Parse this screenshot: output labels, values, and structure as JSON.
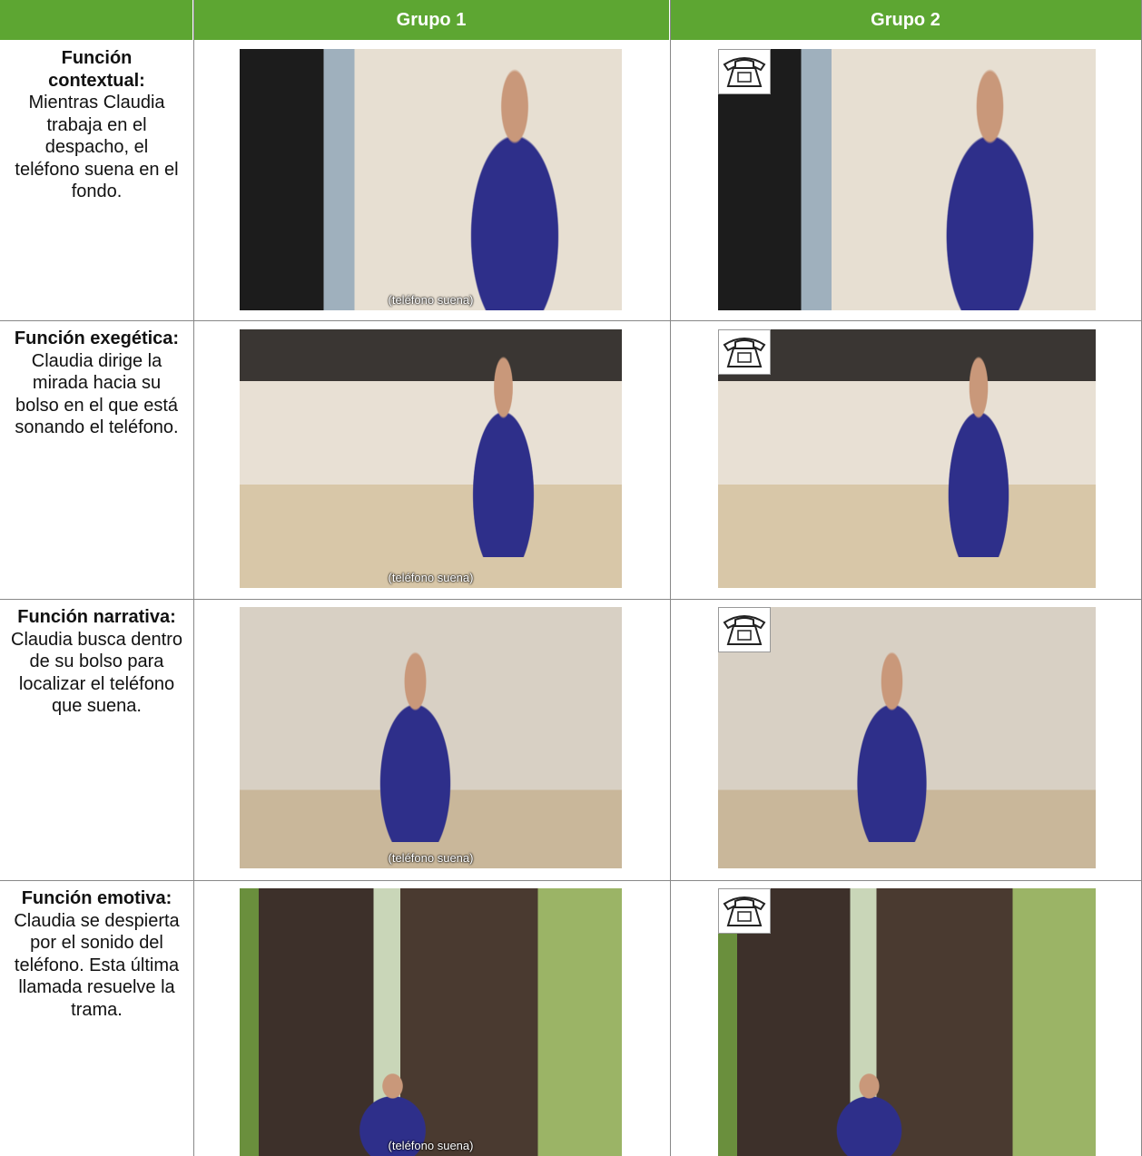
{
  "header": {
    "columns": [
      "Grupo 1",
      "Grupo 2"
    ]
  },
  "rows": [
    {
      "title": "Función contextual:",
      "text": "Mientras Claudia trabaja en el despacho, el teléfono suena en el fondo.",
      "caption": "(teléfono suena)"
    },
    {
      "title": "Función exegética:",
      "text": "Claudia dirige la mirada hacia su bolso en el que está sonando el teléfono.",
      "caption": "(teléfono suena)"
    },
    {
      "title": "Función narrativa:",
      "text": "Claudia busca dentro de su bolso para localizar el teléfono que suena.",
      "caption": "(teléfono suena)"
    },
    {
      "title": "Función emotiva:",
      "text": "Claudia se despierta por el sonido del teléfono. Esta última llamada resuelve la trama.",
      "caption": "(teléfono suena)"
    }
  ]
}
